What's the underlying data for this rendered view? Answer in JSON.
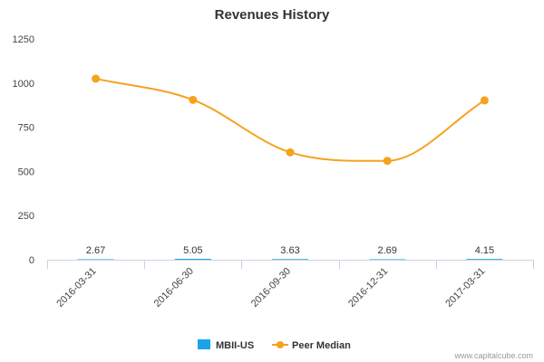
{
  "chart_data": {
    "type": "bar",
    "title": "Revenues History",
    "categories": [
      "2016-03-31",
      "2016-06-30",
      "2016-09-30",
      "2016-12-31",
      "2017-03-31"
    ],
    "ylim": [
      0,
      1250
    ],
    "yticks": [
      0,
      250,
      500,
      750,
      1000,
      1250
    ],
    "grid": false,
    "legend_position": "bottom",
    "series": [
      {
        "name": "MBII-US",
        "kind": "bar",
        "color": "#1aa3e8",
        "values": [
          2.67,
          5.05,
          3.63,
          2.69,
          4.15
        ],
        "data_labels": [
          "2.67",
          "5.05",
          "3.63",
          "2.69",
          "4.15"
        ]
      },
      {
        "name": "Peer Median",
        "kind": "line",
        "color": "#f5a21e",
        "values": [
          1025,
          905,
          608,
          560,
          902
        ]
      }
    ]
  },
  "credit": "www.capitalcube.com"
}
